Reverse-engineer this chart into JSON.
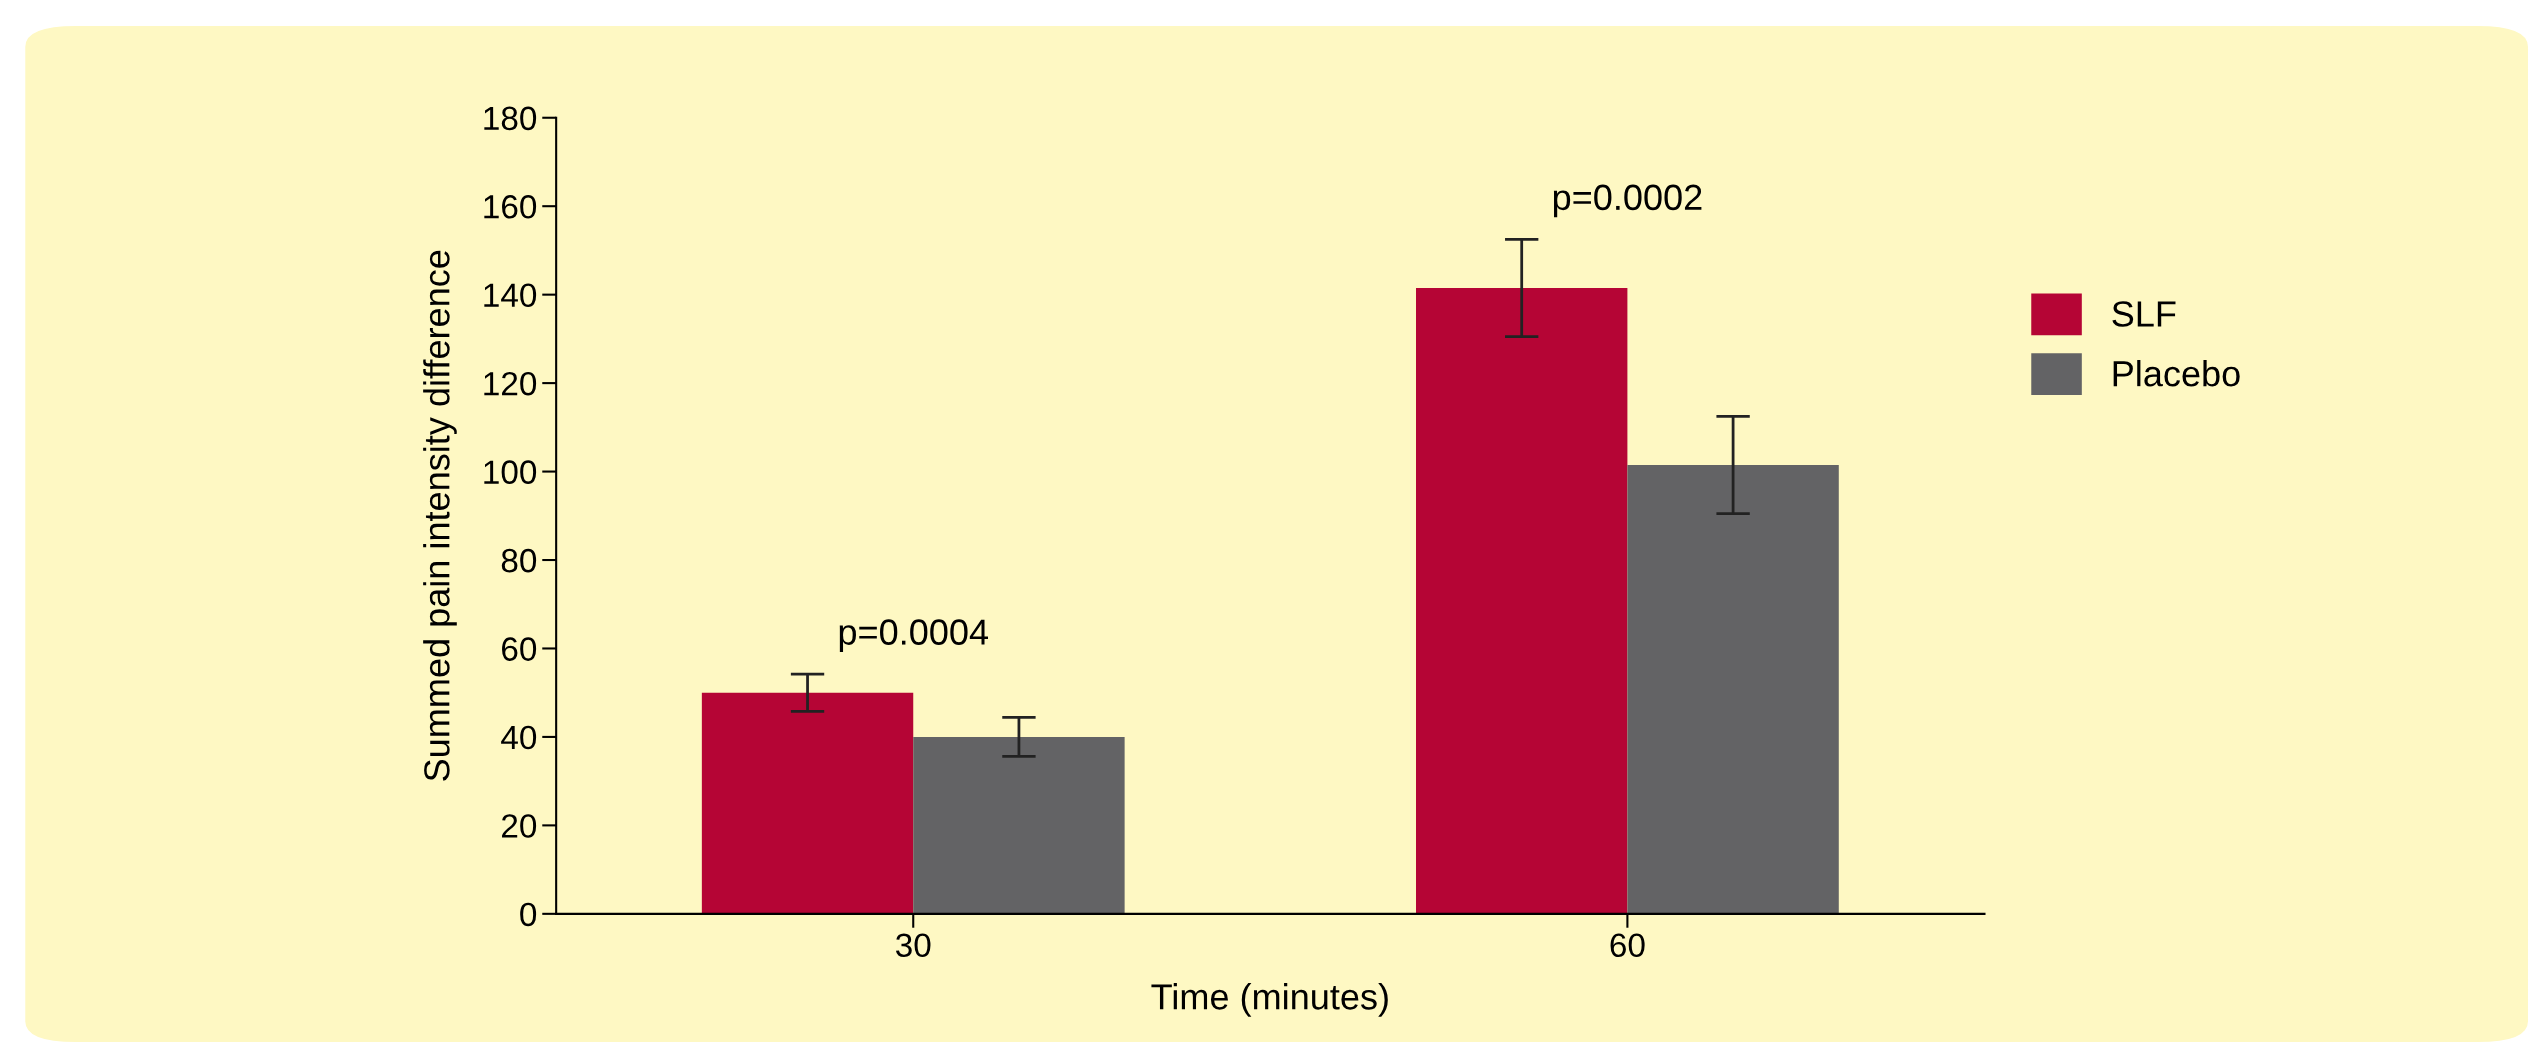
{
  "chart_data": {
    "type": "bar",
    "xlabel": "Time (minutes)",
    "ylabel": "Summed pain intensity difference",
    "categories": [
      "30",
      "60"
    ],
    "series": [
      {
        "name": "SLF",
        "color": "#b50535",
        "values": [
          50,
          141.5
        ],
        "errors": [
          4.2,
          11
        ]
      },
      {
        "name": "Placebo",
        "color": "#636365",
        "values": [
          40,
          101.5
        ],
        "errors": [
          4.4,
          11
        ]
      }
    ],
    "ylim": [
      0,
      180
    ],
    "yticks": [
      0,
      20,
      40,
      60,
      80,
      100,
      120,
      140,
      160,
      180
    ],
    "annotations": [
      "p=0.0004",
      "p=0.0002"
    ],
    "grid": false,
    "legend": "right"
  }
}
